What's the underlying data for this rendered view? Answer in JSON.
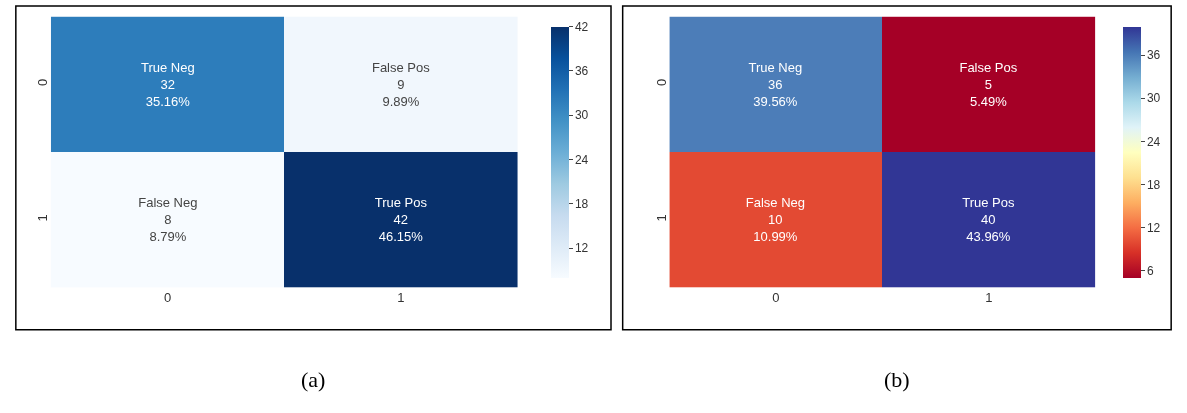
{
  "chart_data": [
    {
      "type": "heatmap",
      "categories": [
        "0",
        "1"
      ],
      "y_categories": [
        "0",
        "1"
      ],
      "cells": [
        [
          32,
          9
        ],
        [
          8,
          42
        ]
      ],
      "cell_labels": [
        [
          "True Neg\n32\n35.16%",
          "False Pos\n9\n9.89%"
        ],
        [
          "False Neg\n8\n8.79%",
          "True Pos\n42\n46.15%"
        ]
      ],
      "clim": [
        8,
        42
      ],
      "cticks": [
        12,
        18,
        24,
        30,
        36,
        42
      ],
      "annotations": [
        "(a)"
      ]
    },
    {
      "type": "heatmap",
      "categories": [
        "0",
        "1"
      ],
      "y_categories": [
        "0",
        "1"
      ],
      "cells": [
        [
          36,
          5
        ],
        [
          10,
          40
        ]
      ],
      "cell_labels": [
        [
          "True Neg\n36\n39.56%",
          "False Pos\n5\n5.49%"
        ],
        [
          "False Neg\n10\n10.99%",
          "True Pos\n40\n43.96%"
        ]
      ],
      "clim": [
        5,
        40
      ],
      "cticks": [
        6,
        12,
        18,
        24,
        30,
        36
      ],
      "annotations": [
        "(b)"
      ]
    }
  ]
}
